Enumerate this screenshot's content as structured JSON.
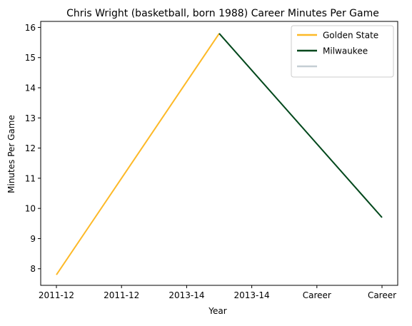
{
  "chart_data": {
    "type": "line",
    "title": "Chris Wright (basketball, born 1988) Career Minutes Per Game",
    "xlabel": "Year",
    "ylabel": "Minutes Per Game",
    "categories": [
      "2011-12",
      "2011-12",
      "2013-14",
      "2013-14",
      "Career",
      "Career"
    ],
    "ylim": [
      7.45,
      16.2
    ],
    "yticks": [
      8,
      9,
      10,
      11,
      12,
      13,
      14,
      15,
      16
    ],
    "grid": false,
    "legend_position": "top-right",
    "series": [
      {
        "name": "Golden State",
        "color": "#FDB927",
        "points": [
          {
            "x": 0,
            "y": 7.8
          },
          {
            "x": 2.5,
            "y": 15.8
          }
        ]
      },
      {
        "name": "Milwaukee",
        "color": "#00471B",
        "points": [
          {
            "x": 2.5,
            "y": 15.8
          },
          {
            "x": 5,
            "y": 9.7
          }
        ]
      },
      {
        "name": "",
        "color": "#C4CED4",
        "points": []
      }
    ]
  }
}
